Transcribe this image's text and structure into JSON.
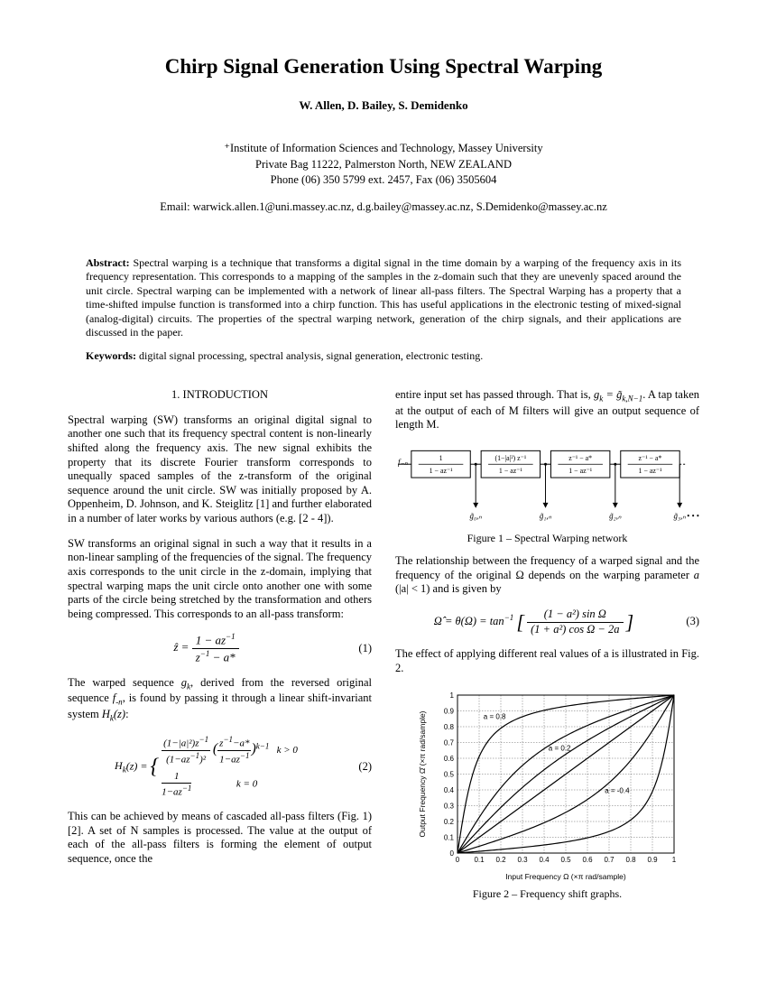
{
  "title": "Chirp Signal Generation Using Spectral Warping",
  "authors": "W. Allen, D. Bailey, S. Demidenko",
  "affiliation": {
    "line1": "⁺Institute of Information Sciences and Technology, Massey University",
    "line2": "Private Bag 11222, Palmerston North, NEW ZEALAND",
    "line3": "Phone (06) 350 5799 ext. 2457, Fax (06) 3505604"
  },
  "email": "Email: warwick.allen.1@uni.massey.ac.nz, d.g.bailey@massey.ac.nz, S.Demidenko@massey.ac.nz",
  "abstract_label": "Abstract: ",
  "abstract": "Spectral warping is a technique that transforms a digital signal in the time domain by a warping of the frequency axis in its frequency representation. This corresponds to a mapping of the samples in the z-domain such that they are unevenly spaced around the unit circle. Spectral warping can be implemented with a network of linear all-pass filters. The Spectral Warping has a property that a time-shifted impulse function is transformed into a chirp function. This has useful applications in the electronic testing of mixed-signal (analog-digital) circuits. The properties of the spectral warping network, generation of the chirp signals, and their applications are discussed in the paper.",
  "keywords_label": "Keywords: ",
  "keywords": "digital signal processing, spectral analysis, signal generation, electronic testing.",
  "section1_head": "1. INTRODUCTION",
  "col1": {
    "p1": "Spectral warping (SW) transforms an original digital signal to another one such that its frequency spectral content is non-linearly shifted along the frequency axis. The new signal exhibits the property that its discrete Fourier transform corresponds to unequally spaced samples of the z-transform of the original sequence around the unit circle. SW was initially proposed by A. Oppenheim, D. Johnson, and K. Steiglitz [1] and further elaborated in a number of later works by various authors (e.g. [2 - 4]).",
    "p2": "SW transforms an original signal in such a way that it results in a non-linear sampling of the frequencies of the signal. The frequency axis corresponds to the unit circle in the z-domain, implying that spectral warping maps the unit circle onto another one with some parts of the circle being stretched by the transformation and others being compressed. This corresponds to an all-pass transform:",
    "p3a": "The warped sequence ",
    "p3b": ", derived from the reversed original sequence ",
    "p3c": ", is found by passing it through a linear shift-invariant system ",
    "p3d": ":",
    "p4": "This can be achieved by means of cascaded all-pass filters (Fig. 1) [2]. A set of N samples is processed. The value at the output of each of the all-pass filters is forming the element of output sequence, once the"
  },
  "col2": {
    "p1a": "entire input set has passed through. That is, ",
    "p1b": ". A tap taken at the output of each of M filters will give an output sequence of length M.",
    "p2a": "The relationship between the frequency of a warped signal and the frequency of the original Ω depends on the warping parameter ",
    "p2b": " (|a| < 1) and is given by",
    "p3": "The effect of applying different real values of a is illustrated in Fig. 2."
  },
  "eq1_num": "(1)",
  "eq2_num": "(2)",
  "eq3_num": "(3)",
  "fig1": {
    "caption": "Figure 1 – Spectral Warping network",
    "input_label": "f₋ₙ",
    "boxes": [
      {
        "num": "1",
        "den": "1 − az⁻¹"
      },
      {
        "num": "(1−|a|²) z⁻¹",
        "den": "1 − az⁻¹"
      },
      {
        "num": "z⁻¹ − a*",
        "den": "1 − az⁻¹"
      },
      {
        "num": "z⁻¹ − a*",
        "den": "1 − az⁻¹"
      }
    ],
    "taps": [
      "g̃₀,ₙ",
      "g̃₁,ₙ",
      "g̃₂,ₙ",
      "g̃₃,ₙ"
    ],
    "dots": "• • •"
  },
  "fig2": {
    "caption": "Figure 2 – Frequency shift graphs.",
    "type": "line",
    "xlabel": "Input Frequency Ω (×π rad/sample)",
    "ylabel": "Output Frequency Ω̂ (×π rad/sample)",
    "xlim": [
      0,
      1
    ],
    "ylim": [
      0,
      1
    ],
    "tick_step": 0.1,
    "ticks": [
      0,
      0.1,
      0.2,
      0.3,
      0.4,
      0.5,
      0.6,
      0.7,
      0.8,
      0.9,
      1
    ],
    "background_color": "#ffffff",
    "grid_color": "#000000",
    "axis_fontsize": 8,
    "curves": [
      {
        "a": 0.8,
        "label": "a = 0.8",
        "label_x": 0.12,
        "label_y": 0.85,
        "color": "#000000"
      },
      {
        "a": 0.4,
        "label": "",
        "color": "#000000"
      },
      {
        "a": 0.2,
        "label": "a = 0.2",
        "label_x": 0.42,
        "label_y": 0.65,
        "color": "#000000"
      },
      {
        "a": 0.0,
        "label": "",
        "color": "#000000"
      },
      {
        "a": -0.4,
        "label": "a = -0.4",
        "label_x": 0.68,
        "label_y": 0.38,
        "color": "#000000"
      },
      {
        "a": -0.8,
        "label": "",
        "color": "#000000"
      }
    ]
  }
}
